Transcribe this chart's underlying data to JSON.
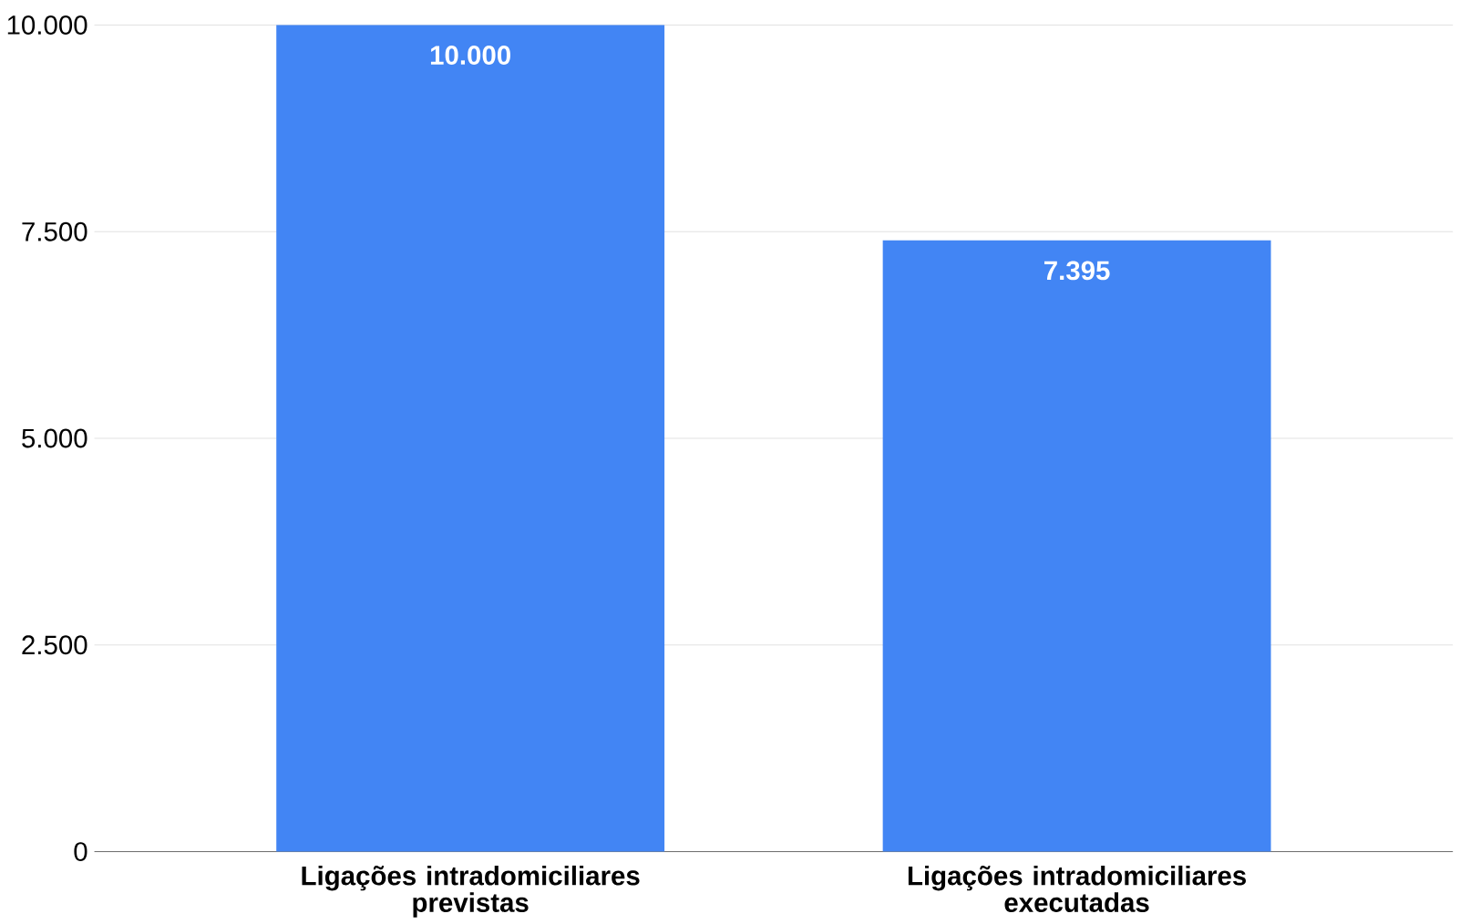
{
  "chart_data": {
    "type": "bar",
    "categories": [
      "Ligações intradomiciliares previstas",
      "Ligações intradomiciliares executadas"
    ],
    "values": [
      10000,
      7395
    ],
    "color": "#4285f4",
    "value_labels": [
      "10.000",
      "7.395"
    ],
    "ylim": [
      0,
      10000
    ],
    "yticks": [
      0,
      {
        "value": 2500,
        "label": "2.500"
      },
      {
        "value": 5000,
        "label": "5.000"
      },
      {
        "value": 7500,
        "label": "7.500"
      },
      {
        "value": 10000,
        "label": "10.000"
      }
    ],
    "grid": "y"
  }
}
